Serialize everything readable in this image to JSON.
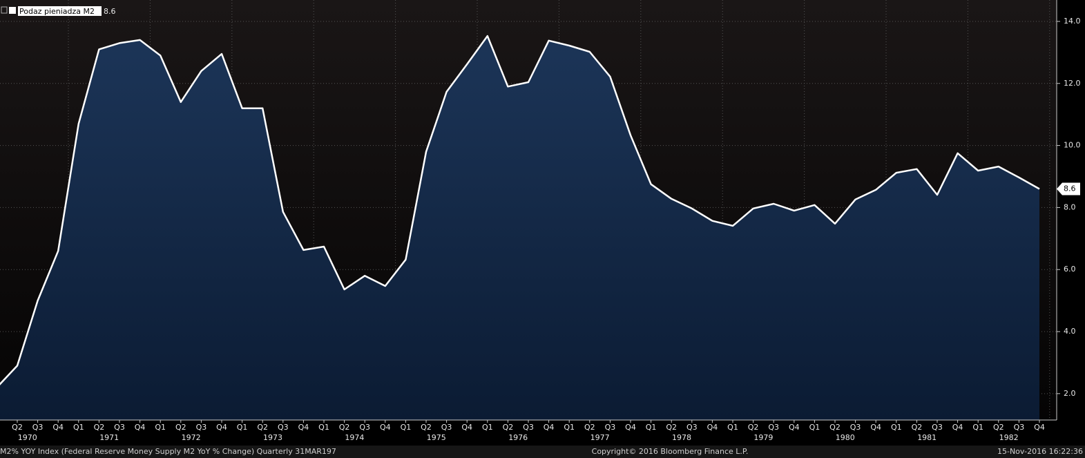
{
  "chart_data": {
    "type": "area",
    "categories": [
      null,
      "Q2",
      "Q3",
      "Q4",
      "Q1",
      "Q2",
      "Q3",
      "Q4",
      "Q1",
      "Q2",
      "Q3",
      "Q4",
      "Q1",
      "Q2",
      "Q3",
      "Q4",
      "Q1",
      "Q2",
      "Q3",
      "Q4",
      "Q1",
      "Q2",
      "Q3",
      "Q4",
      "Q1",
      "Q2",
      "Q3",
      "Q4",
      "Q1",
      "Q2",
      "Q3",
      "Q4",
      "Q1",
      "Q2",
      "Q3",
      "Q4",
      "Q1",
      "Q2",
      "Q3",
      "Q4",
      "Q1",
      "Q2",
      "Q3",
      "Q4",
      "Q1",
      "Q2",
      "Q3",
      "Q4",
      "Q1",
      "Q2",
      "Q3",
      "Q4"
    ],
    "years": [
      "1970",
      "1971",
      "1972",
      "1973",
      "1974",
      "1975",
      "1976",
      "1977",
      "1978",
      "1979",
      "1980",
      "1981",
      "1982"
    ],
    "series": [
      {
        "name": "Podaz pieniadza M2",
        "color": "#ffffff",
        "fill": "#15294a",
        "values": [
          2.2,
          2.9,
          5.0,
          6.6,
          10.7,
          13.1,
          13.3,
          13.4,
          12.9,
          11.4,
          12.4,
          12.95,
          11.2,
          11.2,
          7.86,
          6.63,
          6.74,
          5.36,
          5.8,
          5.47,
          6.32,
          9.8,
          11.73,
          12.62,
          13.53,
          11.9,
          12.04,
          13.38,
          13.22,
          13.02,
          12.22,
          10.33,
          8.75,
          8.28,
          7.97,
          7.57,
          7.41,
          7.97,
          8.12,
          7.9,
          8.08,
          7.48,
          8.26,
          8.57,
          9.12,
          9.24,
          8.41,
          9.75,
          9.19,
          9.32,
          8.97,
          8.6
        ]
      }
    ],
    "ylim": [
      1.15,
      14.69
    ],
    "yticks": [
      {
        "value": 2,
        "label": "2.0"
      },
      {
        "value": 4,
        "label": "4.0"
      },
      {
        "value": 6,
        "label": "6.0"
      },
      {
        "value": 8,
        "label": "8.0"
      },
      {
        "value": 10,
        "label": "10.0"
      },
      {
        "value": 12,
        "label": "12.0"
      },
      {
        "value": 14,
        "label": "14.0"
      }
    ],
    "grid": true,
    "footer_left": "M2% YOY Index (Federal Reserve Money Supply M2 YoY % Change)  Quarterly 31MAR197",
    "footer_center": "Copyright© 2016 Bloomberg Finance L.P.",
    "footer_right": "15-Nov-2016 16:22:36"
  }
}
